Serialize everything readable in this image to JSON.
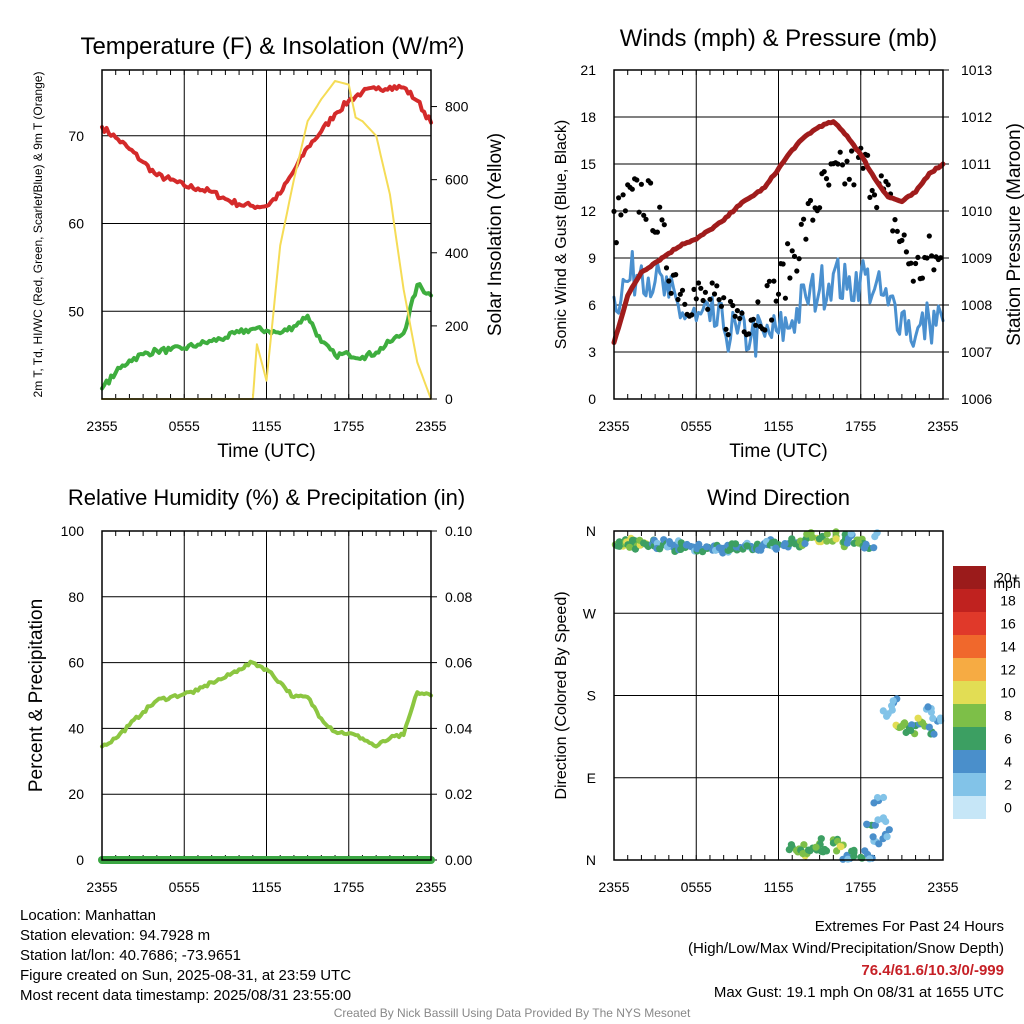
{
  "chart_data": [
    {
      "type": "line",
      "title": "Temperature (F) & Insolation (W/m²)",
      "xlabel": "Time (UTC)",
      "ylabel_left": "2m T, Td, HI/WC (Red, Green, Scarlet/Blue) & 9m T (Orange)",
      "ylabel_right": "Solar Insolation (Yellow)",
      "x_ticks": [
        "2355",
        "0555",
        "1155",
        "1755",
        "2355"
      ],
      "y_left_ticks": [
        50,
        60,
        70
      ],
      "y_left_range": [
        40,
        77.5
      ],
      "y_right_ticks": [
        0,
        200,
        400,
        600,
        800
      ],
      "y_right_range": [
        0,
        900
      ],
      "series": [
        {
          "color": "#d42a2a",
          "axis": "left",
          "x": [
            0,
            1,
            2,
            3,
            4,
            5,
            6,
            7,
            8,
            9,
            10,
            11,
            12,
            13,
            14,
            15,
            16,
            17,
            18,
            19,
            20,
            21,
            22,
            23,
            24
          ],
          "values": [
            71,
            69.8,
            68.5,
            67,
            65.5,
            65,
            64.3,
            64,
            63.6,
            62.8,
            62.2,
            62,
            62,
            63.4,
            66,
            68.7,
            70.5,
            72.5,
            74,
            75,
            75.3,
            75.6,
            75.5,
            74,
            71.5
          ]
        },
        {
          "color": "#3eae3e",
          "axis": "left",
          "x": [
            0,
            1,
            2,
            3,
            4,
            5,
            6,
            7,
            8,
            9,
            10,
            11,
            12,
            13,
            14,
            15,
            16,
            17,
            18,
            19,
            20,
            21,
            22,
            23,
            24
          ],
          "values": [
            41.2,
            43,
            44.4,
            45.1,
            45.5,
            45.6,
            45.8,
            46.2,
            46.6,
            47,
            47.6,
            48,
            47.8,
            47.5,
            48.3,
            49.5,
            46.5,
            45,
            45.1,
            44.8,
            45.3,
            46.5,
            47.5,
            53,
            51.8
          ]
        },
        {
          "color": "#f5dc56",
          "axis": "right",
          "x": [
            0,
            3,
            6,
            9,
            11,
            11.3,
            12,
            13,
            14,
            15,
            16,
            17,
            18,
            18.5,
            19,
            20,
            21,
            22,
            23,
            24
          ],
          "values": [
            0,
            0,
            0,
            0,
            0,
            150,
            50,
            420,
            600,
            760,
            820,
            870,
            860,
            770,
            760,
            720,
            560,
            300,
            100,
            0
          ]
        }
      ]
    },
    {
      "type": "line",
      "title": "Winds (mph) & Pressure (mb)",
      "xlabel": "Time (UTC)",
      "ylabel_left": "Sonic Wind & Gust (Blue, Black)",
      "ylabel_right": "Station Pressure (Maroon)",
      "x_ticks": [
        "2355",
        "0555",
        "1155",
        "1755",
        "2355"
      ],
      "y_left_ticks": [
        0,
        3,
        6,
        9,
        12,
        15,
        18,
        21
      ],
      "y_left_range": [
        0,
        21
      ],
      "y_right_ticks": [
        1006,
        1007,
        1008,
        1009,
        1010,
        1011,
        1012,
        1013
      ],
      "y_right_range": [
        1006,
        1013
      ],
      "series": [
        {
          "color": "#4a90cf",
          "axis": "left",
          "x": [
            0,
            1,
            2,
            3,
            4,
            5,
            6,
            7,
            8,
            9,
            10,
            11,
            12,
            13,
            14,
            15,
            16,
            17,
            18,
            19,
            20,
            21,
            22,
            23,
            24
          ],
          "values": [
            6.5,
            7.5,
            8.5,
            7.5,
            6.5,
            5.5,
            5,
            5,
            4.5,
            4.2,
            4,
            4,
            4.2,
            5,
            6.5,
            7,
            8,
            7,
            8,
            7,
            6,
            5.5,
            4,
            5,
            5
          ]
        },
        {
          "color": "#000000",
          "axis": "left",
          "marker": "dot",
          "x": [
            0,
            1,
            2,
            3,
            4,
            5,
            6,
            7,
            8,
            9,
            10,
            11,
            12,
            13,
            14,
            15,
            16,
            17,
            18,
            19,
            20,
            21,
            22,
            23,
            24
          ],
          "values": [
            11,
            12.5,
            13,
            12,
            8.5,
            7,
            6.5,
            6,
            5.5,
            5.5,
            5.5,
            6,
            7,
            9,
            11,
            13,
            14,
            14.5,
            15,
            14,
            12.5,
            10,
            8,
            9,
            8.5
          ]
        },
        {
          "color": "#a01c1c",
          "axis": "right",
          "x": [
            0,
            1,
            2,
            3,
            4,
            5,
            6,
            7,
            8,
            9,
            10,
            11,
            12,
            13,
            14,
            15,
            16,
            17,
            18,
            19,
            20,
            21,
            22,
            23,
            24
          ],
          "values": [
            1007.2,
            1008.2,
            1008.7,
            1008.9,
            1009.1,
            1009.3,
            1009.4,
            1009.6,
            1009.8,
            1010.1,
            1010.3,
            1010.5,
            1010.9,
            1011.3,
            1011.6,
            1011.8,
            1011.9,
            1011.6,
            1011.2,
            1010.7,
            1010.3,
            1010.2,
            1010.4,
            1010.8,
            1011
          ]
        }
      ]
    },
    {
      "type": "line",
      "title": "Relative Humidity (%) & Precipitation (in)",
      "xlabel": "",
      "ylabel_left": "Percent & Precipitation",
      "x_ticks": [
        "2355",
        "0555",
        "1155",
        "1755",
        "2355"
      ],
      "y_left_ticks": [
        0,
        20,
        40,
        60,
        80,
        100
      ],
      "y_left_range": [
        0,
        100
      ],
      "y_right_ticks": [
        "0.00",
        "0.02",
        "0.04",
        "0.06",
        "0.08",
        "0.10"
      ],
      "y_right_range": [
        0,
        0.1
      ],
      "series": [
        {
          "color": "#8cc641",
          "axis": "left",
          "x": [
            0,
            1,
            2,
            3,
            4,
            5,
            6,
            7,
            8,
            9,
            10,
            11,
            12,
            13,
            14,
            15,
            16,
            17,
            18,
            19,
            20,
            21,
            22,
            23,
            24
          ],
          "values": [
            34.5,
            37,
            41,
            45,
            48.5,
            49.5,
            50.5,
            51.5,
            54,
            55.5,
            58,
            60,
            58,
            54,
            49.5,
            49.5,
            43,
            39,
            38.5,
            37,
            34.5,
            37,
            38,
            51,
            50
          ]
        },
        {
          "color": "#3aa642",
          "axis": "right",
          "x": [
            0,
            24
          ],
          "values": [
            0,
            0
          ]
        }
      ]
    },
    {
      "type": "scatter",
      "title": "Wind Direction",
      "xlabel": "",
      "ylabel_left": "Direction (Colored By Speed)",
      "x_ticks": [
        "2355",
        "0555",
        "1155",
        "1755",
        "2355"
      ],
      "y_left_ticks": [
        "N",
        "E",
        "S",
        "W",
        "N"
      ],
      "y_left_range": [
        0,
        360
      ],
      "legend_title": "mph",
      "legend_labels": [
        "0",
        "2",
        "4",
        "6",
        "8",
        "10",
        "12",
        "14",
        "16",
        "18",
        "20+"
      ],
      "legend_colors": [
        "#c6e6f7",
        "#82c3e8",
        "#4a8fcb",
        "#3c9f62",
        "#7dbf48",
        "#e2dd54",
        "#f6ab43",
        "#f0682c",
        "#e0392a",
        "#c0221f",
        "#9b1b1b"
      ],
      "points": [
        {
          "x": 0.1,
          "dir": 345,
          "spd": 8
        },
        {
          "x": 0.4,
          "dir": 348,
          "spd": 9
        },
        {
          "x": 0.7,
          "dir": 346,
          "spd": 7
        },
        {
          "x": 1.0,
          "dir": 347,
          "spd": 10
        },
        {
          "x": 1.3,
          "dir": 344,
          "spd": 8
        },
        {
          "x": 1.6,
          "dir": 349,
          "spd": 6
        },
        {
          "x": 1.9,
          "dir": 345,
          "spd": 7
        },
        {
          "x": 2.2,
          "dir": 347,
          "spd": 9
        },
        {
          "x": 2.5,
          "dir": 343,
          "spd": 6
        },
        {
          "x": 2.8,
          "dir": 346,
          "spd": 4
        },
        {
          "x": 3.2,
          "dir": 344,
          "spd": 4
        },
        {
          "x": 3.6,
          "dir": 345,
          "spd": 5
        },
        {
          "x": 4.0,
          "dir": 343,
          "spd": 4
        },
        {
          "x": 4.4,
          "dir": 341,
          "spd": 4
        },
        {
          "x": 4.8,
          "dir": 344,
          "spd": 4
        },
        {
          "x": 5.2,
          "dir": 342,
          "spd": 5
        },
        {
          "x": 5.6,
          "dir": 343,
          "spd": 4
        },
        {
          "x": 6.0,
          "dir": 342,
          "spd": 4
        },
        {
          "x": 6.4,
          "dir": 340,
          "spd": 4
        },
        {
          "x": 6.8,
          "dir": 341,
          "spd": 5
        },
        {
          "x": 7.2,
          "dir": 339,
          "spd": 4
        },
        {
          "x": 7.6,
          "dir": 340,
          "spd": 4
        },
        {
          "x": 8.0,
          "dir": 341,
          "spd": 4
        },
        {
          "x": 8.4,
          "dir": 340,
          "spd": 5
        },
        {
          "x": 8.8,
          "dir": 341,
          "spd": 4
        },
        {
          "x": 9.2,
          "dir": 342,
          "spd": 4
        },
        {
          "x": 9.6,
          "dir": 344,
          "spd": 4
        },
        {
          "x": 10.0,
          "dir": 343,
          "spd": 4
        },
        {
          "x": 10.4,
          "dir": 342,
          "spd": 5
        },
        {
          "x": 10.8,
          "dir": 343,
          "spd": 4
        },
        {
          "x": 11.2,
          "dir": 345,
          "spd": 4
        },
        {
          "x": 11.6,
          "dir": 344,
          "spd": 4
        },
        {
          "x": 12.0,
          "dir": 345,
          "spd": 5
        },
        {
          "x": 12.4,
          "dir": 344,
          "spd": 4
        },
        {
          "x": 12.8,
          "dir": 346,
          "spd": 5
        },
        {
          "x": 13.2,
          "dir": 347,
          "spd": 6
        },
        {
          "x": 13.6,
          "dir": 349,
          "spd": 7
        },
        {
          "x": 14.0,
          "dir": 351,
          "spd": 6
        },
        {
          "x": 14.4,
          "dir": 353,
          "spd": 8
        },
        {
          "x": 14.8,
          "dir": 352,
          "spd": 10
        },
        {
          "x": 15.2,
          "dir": 354,
          "spd": 6
        },
        {
          "x": 16.2,
          "dir": 354,
          "spd": 8
        },
        {
          "x": 16.8,
          "dir": 348,
          "spd": 7
        },
        {
          "x": 17.0,
          "dir": 351,
          "spd": 6
        },
        {
          "x": 17.3,
          "dir": 355,
          "spd": 4
        },
        {
          "x": 17.8,
          "dir": 350,
          "spd": 7
        },
        {
          "x": 18.2,
          "dir": 346,
          "spd": 6
        },
        {
          "x": 18.6,
          "dir": 341,
          "spd": 5
        },
        {
          "x": 19.2,
          "dir": 358,
          "spd": 2
        },
        {
          "x": 13.0,
          "dir": 14,
          "spd": 6
        },
        {
          "x": 13.5,
          "dir": 12,
          "spd": 7
        },
        {
          "x": 14.0,
          "dir": 8,
          "spd": 8
        },
        {
          "x": 14.5,
          "dir": 13,
          "spd": 5
        },
        {
          "x": 15.0,
          "dir": 18,
          "spd": 8
        },
        {
          "x": 15.5,
          "dir": 10,
          "spd": 6
        },
        {
          "x": 16.0,
          "dir": 22,
          "spd": 7
        },
        {
          "x": 16.5,
          "dir": 15,
          "spd": 9
        },
        {
          "x": 17.0,
          "dir": 5,
          "spd": 4
        },
        {
          "x": 17.5,
          "dir": 8,
          "spd": 5
        },
        {
          "x": 18.0,
          "dir": 3,
          "spd": 6
        },
        {
          "x": 18.5,
          "dir": 6,
          "spd": 4
        },
        {
          "x": 18.8,
          "dir": 38,
          "spd": 5
        },
        {
          "x": 19.1,
          "dir": 20,
          "spd": 2
        },
        {
          "x": 19.3,
          "dir": 65,
          "spd": 3
        },
        {
          "x": 19.6,
          "dir": 45,
          "spd": 2
        },
        {
          "x": 19.8,
          "dir": 28,
          "spd": 3
        },
        {
          "x": 20.0,
          "dir": 160,
          "spd": 2
        },
        {
          "x": 20.4,
          "dir": 172,
          "spd": 3
        },
        {
          "x": 20.8,
          "dir": 145,
          "spd": 8
        },
        {
          "x": 21.2,
          "dir": 150,
          "spd": 7
        },
        {
          "x": 21.6,
          "dir": 142,
          "spd": 6
        },
        {
          "x": 22.0,
          "dir": 147,
          "spd": 5
        },
        {
          "x": 22.4,
          "dir": 151,
          "spd": 8
        },
        {
          "x": 22.8,
          "dir": 165,
          "spd": 2
        },
        {
          "x": 23.2,
          "dir": 140,
          "spd": 6
        },
        {
          "x": 23.6,
          "dir": 152,
          "spd": 3
        }
      ]
    }
  ],
  "footer": {
    "location": "Location: Manhattan",
    "elevation": "Station elevation: 94.7928 m",
    "latlon": "Station lat/lon: 40.7686; -73.9651",
    "created": "Figure created on Sun, 2025-08-31, at 23:59 UTC",
    "recent": "Most recent data timestamp: 2025/08/31 23:55:00",
    "extremes_title": "Extremes For Past 24 Hours",
    "extremes_desc": "(High/Low/Max Wind/Precipitation/Snow Depth)",
    "extremes_values": "76.4/61.6/10.3/0/-999",
    "max_gust": "Max Gust: 19.1 mph On 08/31 at 1655 UTC",
    "credit": "Created By Nick Bassill Using Data Provided By The NYS Mesonet"
  }
}
